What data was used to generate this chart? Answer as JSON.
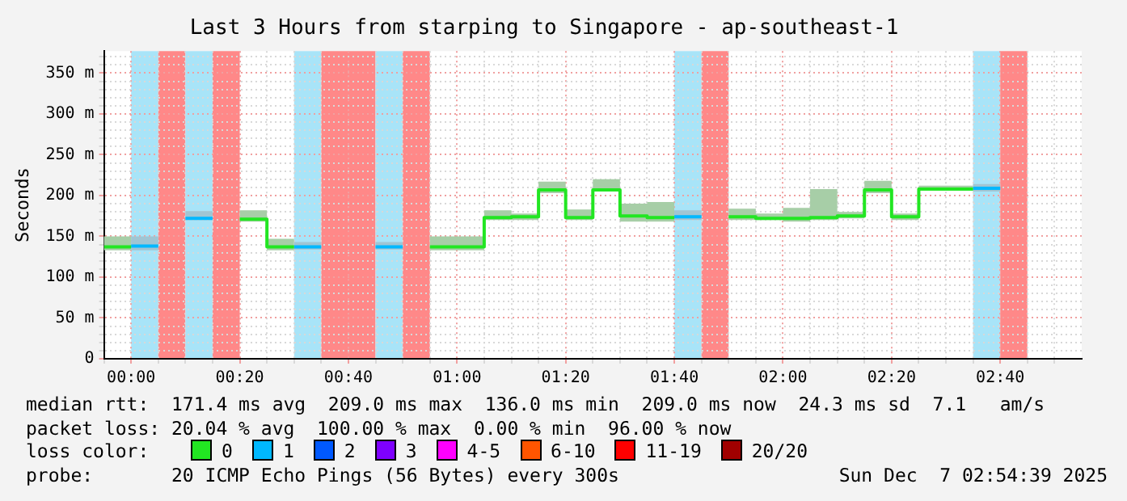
{
  "chart_data": {
    "type": "line",
    "title": "Last 3 Hours from starping to Singapore - ap-southeast-1",
    "ylabel": "Seconds",
    "series": [
      {
        "name": "0",
        "color": "#22e622",
        "x": [
          -0.0833,
          0,
          0.1667,
          0.3333,
          0.4167,
          0.4167,
          0.5,
          0.7,
          0.9167,
          1,
          1,
          1.0833,
          1.0833,
          1.1667,
          1.1667,
          1.25,
          1.25,
          1.3333,
          1.3333,
          1.4167,
          1.4167,
          1.5,
          1.5,
          1.5833,
          1.5833,
          1.6667,
          1.75,
          1.8333,
          1.9167,
          1.9167,
          2,
          2,
          2.0833,
          2.0833,
          2.1667,
          2.1667,
          2.25,
          2.25,
          2.3333,
          2.3333,
          2.4167,
          2.4167,
          2.5833
        ],
        "values": [
          137,
          137,
          null,
          171,
          171,
          137,
          137,
          null,
          137,
          137,
          137,
          137,
          173,
          173,
          174,
          174,
          207,
          207,
          173,
          173,
          207,
          207,
          175,
          175,
          173,
          173,
          null,
          174,
          174,
          172,
          172,
          172,
          172,
          173,
          173,
          175,
          175,
          207,
          207,
          174,
          174,
          208,
          208
        ],
        "lower": [
          133,
          133,
          null,
          168,
          168,
          133,
          133,
          null,
          133,
          133,
          133,
          133,
          170,
          170,
          170,
          170,
          203,
          203,
          170,
          170,
          205,
          205,
          168,
          168,
          168,
          168,
          null,
          170,
          170,
          170,
          170,
          168,
          168,
          170,
          170,
          172,
          172,
          203,
          203,
          170,
          170,
          206,
          206
        ],
        "upper": [
          150,
          150,
          null,
          182,
          182,
          147,
          147,
          null,
          150,
          150,
          150,
          150,
          182,
          182,
          178,
          178,
          217,
          217,
          183,
          183,
          220,
          220,
          190,
          190,
          192,
          192,
          null,
          184,
          184,
          178,
          178,
          185,
          185,
          208,
          208,
          180,
          180,
          218,
          218,
          178,
          178,
          212,
          212
        ]
      },
      {
        "name": "1",
        "color": "#00b8ff",
        "x": [
          0,
          0.0833,
          0.125,
          0.1667,
          0.25,
          0.375,
          0.5,
          0.5833,
          0.6667,
          0.75,
          0.8333,
          1.25,
          1.6667,
          1.75,
          2.1667,
          2.5833,
          2.6667
        ],
        "values": [
          138,
          138,
          null,
          172,
          172,
          null,
          137,
          137,
          null,
          137,
          137,
          null,
          174,
          174,
          null,
          209,
          209
        ],
        "lower": [
          133,
          133,
          null,
          170,
          170,
          null,
          134,
          134,
          null,
          134,
          134,
          null,
          170,
          170,
          null,
          205,
          205
        ],
        "upper": [
          150,
          150,
          null,
          181,
          181,
          null,
          143,
          143,
          null,
          143,
          143,
          null,
          182,
          182,
          null,
          214,
          214
        ]
      },
      {
        "name": "2",
        "color": "#0059ff"
      },
      {
        "name": "3",
        "color": "#7e00ff"
      },
      {
        "name": "4-5",
        "color": "#ff00ff"
      },
      {
        "name": "6-10",
        "color": "#ff5500"
      },
      {
        "name": "11-19",
        "color": "#ff0000"
      },
      {
        "name": "20/20",
        "color": "#a10000"
      }
    ],
    "xlim": [
      -0.0833,
      2.9167
    ],
    "xticks": [
      {
        "value": -0.0833,
        "label": null
      },
      {
        "value": 0,
        "label": "00:00"
      },
      {
        "value": 0.0833,
        "label": null
      },
      {
        "value": 0.1667,
        "label": null
      },
      {
        "value": 0.25,
        "label": null
      },
      {
        "value": 0.3333,
        "label": "00:20"
      },
      {
        "value": 0.4167,
        "label": null
      },
      {
        "value": 0.5,
        "label": null
      },
      {
        "value": 0.5833,
        "label": null
      },
      {
        "value": 0.6667,
        "label": "00:40"
      },
      {
        "value": 0.75,
        "label": null
      },
      {
        "value": 0.8333,
        "label": null
      },
      {
        "value": 0.9167,
        "label": null
      },
      {
        "value": 1,
        "label": "01:00"
      },
      {
        "value": 1.0833,
        "label": null
      },
      {
        "value": 1.1667,
        "label": null
      },
      {
        "value": 1.25,
        "label": null
      },
      {
        "value": 1.3333,
        "label": "01:20"
      },
      {
        "value": 1.4167,
        "label": null
      },
      {
        "value": 1.5,
        "label": null
      },
      {
        "value": 1.5833,
        "label": null
      },
      {
        "value": 1.6667,
        "label": "01:40"
      },
      {
        "value": 1.75,
        "label": null
      },
      {
        "value": 1.8333,
        "label": null
      },
      {
        "value": 1.9167,
        "label": null
      },
      {
        "value": 2,
        "label": "02:00"
      },
      {
        "value": 2.0833,
        "label": null
      },
      {
        "value": 2.1667,
        "label": null
      },
      {
        "value": 2.25,
        "label": null
      },
      {
        "value": 2.3333,
        "label": "02:20"
      },
      {
        "value": 2.4167,
        "label": null
      },
      {
        "value": 2.5,
        "label": null
      },
      {
        "value": 2.5833,
        "label": null
      },
      {
        "value": 2.6667,
        "label": "02:40"
      },
      {
        "value": 2.75,
        "label": null
      },
      {
        "value": 2.8333,
        "label": null
      }
    ],
    "ylim": [
      0,
      377
    ],
    "yticks": [
      0,
      {
        "value": 10,
        "label": null
      },
      {
        "value": 20,
        "label": null
      },
      {
        "value": 30,
        "label": null
      },
      {
        "value": 40,
        "label": null
      },
      {
        "value": 50,
        "label": "50 m"
      },
      {
        "value": 60,
        "label": null
      },
      {
        "value": 70,
        "label": null
      },
      {
        "value": 80,
        "label": null
      },
      {
        "value": 90,
        "label": null
      },
      {
        "value": 100,
        "label": "100 m"
      },
      {
        "value": 110,
        "label": null
      },
      {
        "value": 120,
        "label": null
      },
      {
        "value": 130,
        "label": null
      },
      {
        "value": 140,
        "label": null
      },
      {
        "value": 150,
        "label": "150 m"
      },
      {
        "value": 160,
        "label": null
      },
      {
        "value": 170,
        "label": null
      },
      {
        "value": 180,
        "label": null
      },
      {
        "value": 190,
        "label": null
      },
      {
        "value": 200,
        "label": "200 m"
      },
      {
        "value": 210,
        "label": null
      },
      {
        "value": 220,
        "label": null
      },
      {
        "value": 230,
        "label": null
      },
      {
        "value": 240,
        "label": null
      },
      {
        "value": 250,
        "label": "250 m"
      },
      {
        "value": 260,
        "label": null
      },
      {
        "value": 270,
        "label": null
      },
      {
        "value": 280,
        "label": null
      },
      {
        "value": 290,
        "label": null
      },
      {
        "value": 300,
        "label": "300 m"
      },
      {
        "value": 310,
        "label": null
      },
      {
        "value": 320,
        "label": null
      },
      {
        "value": 330,
        "label": null
      },
      {
        "value": 340,
        "label": null
      },
      {
        "value": 350,
        "label": "350 m"
      },
      {
        "value": 360,
        "label": null
      },
      {
        "value": 370,
        "label": null
      }
    ],
    "bands": [
      {
        "axis": "x",
        "from": 0,
        "to": 0.0833,
        "color": "#a8e4f8"
      },
      {
        "axis": "x",
        "from": 0.0833,
        "to": 0.1667,
        "color": "#ff8888"
      },
      {
        "axis": "x",
        "from": 0.1667,
        "to": 0.25,
        "color": "#a8e4f8"
      },
      {
        "axis": "x",
        "from": 0.25,
        "to": 0.3333,
        "color": "#ff8888"
      },
      {
        "axis": "x",
        "from": 0.5,
        "to": 0.5833,
        "color": "#a8e4f8"
      },
      {
        "axis": "x",
        "from": 0.5833,
        "to": 0.75,
        "color": "#ff8888"
      },
      {
        "axis": "x",
        "from": 0.75,
        "to": 0.8333,
        "color": "#a8e4f8"
      },
      {
        "axis": "x",
        "from": 0.8333,
        "to": 0.9167,
        "color": "#ff8888"
      },
      {
        "axis": "x",
        "from": 1.6667,
        "to": 1.75,
        "color": "#a8e4f8"
      },
      {
        "axis": "x",
        "from": 1.75,
        "to": 1.8333,
        "color": "#ff8888"
      },
      {
        "axis": "x",
        "from": 2.5833,
        "to": 2.6667,
        "color": "#a8e4f8"
      },
      {
        "axis": "x",
        "from": 2.6667,
        "to": 2.75,
        "color": "#ff8888"
      }
    ],
    "grid": true,
    "legend": "bottom",
    "legend_title": "loss color:",
    "annotations": [
      "median rtt:  171.4 ms avg  209.0 ms max  136.0 ms min  209.0 ms now  24.3 ms sd  7.1   am/s",
      "packet loss: 20.04 % avg  100.00 % max  0.00 % min  96.00 % now",
      "probe:       20 ICMP Echo Pings (56 Bytes) every 300s",
      "Sun Dec  7 02:54:39 2025"
    ]
  }
}
